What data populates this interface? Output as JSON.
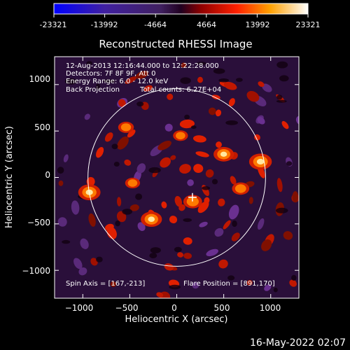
{
  "chart_data": {
    "type": "heatmap",
    "title": "Reconstructed RHESSI Image",
    "xlabel": "Heliocentric X (arcsec)",
    "ylabel": "Heliocentric Y (arcsec)",
    "xlim": [
      -1300,
      1300
    ],
    "ylim": [
      -1300,
      1300
    ],
    "x_ticks": [
      -1000,
      -500,
      0,
      500,
      1000
    ],
    "y_ticks": [
      -1000,
      -500,
      0,
      500,
      1000
    ],
    "colorbar": {
      "min": -23321,
      "max": 23321,
      "tick_labels": [
        "-23321",
        "-13992",
        "-4664",
        "4664",
        "13992",
        "23321"
      ]
    },
    "annotations": {
      "time_range": "12-Aug-2013 12:16:44.000 to 12:22:28.000",
      "detectors": "Detectors: 7F 8F 9F, Att 0",
      "energy_range": "Energy Range: 6.0 - 12.0 keV",
      "method": "Back Projection",
      "total_counts": "Total counts: 6.27E+04",
      "spin_axis": "Spin Axis = [167,-213]",
      "flare_position": "Flare Position = [891,170]"
    },
    "solar_limb_radius": 945,
    "spin_axis_xy": [
      167,
      -213
    ],
    "bright_sources": [
      {
        "x": 891,
        "y": 170,
        "level": 0.95
      },
      {
        "x": -930,
        "y": -160,
        "level": 0.92
      },
      {
        "x": -270,
        "y": -450,
        "level": 0.85
      },
      {
        "x": 500,
        "y": 250,
        "level": 0.8
      },
      {
        "x": 170,
        "y": -260,
        "level": 0.7
      },
      {
        "x": 680,
        "y": -120,
        "level": 0.6
      },
      {
        "x": -540,
        "y": 540,
        "level": 0.5
      },
      {
        "x": -470,
        "y": -60,
        "level": 0.45
      },
      {
        "x": 40,
        "y": 450,
        "level": 0.45
      }
    ]
  },
  "footer": {
    "date": "16-May-2022 02:07"
  }
}
